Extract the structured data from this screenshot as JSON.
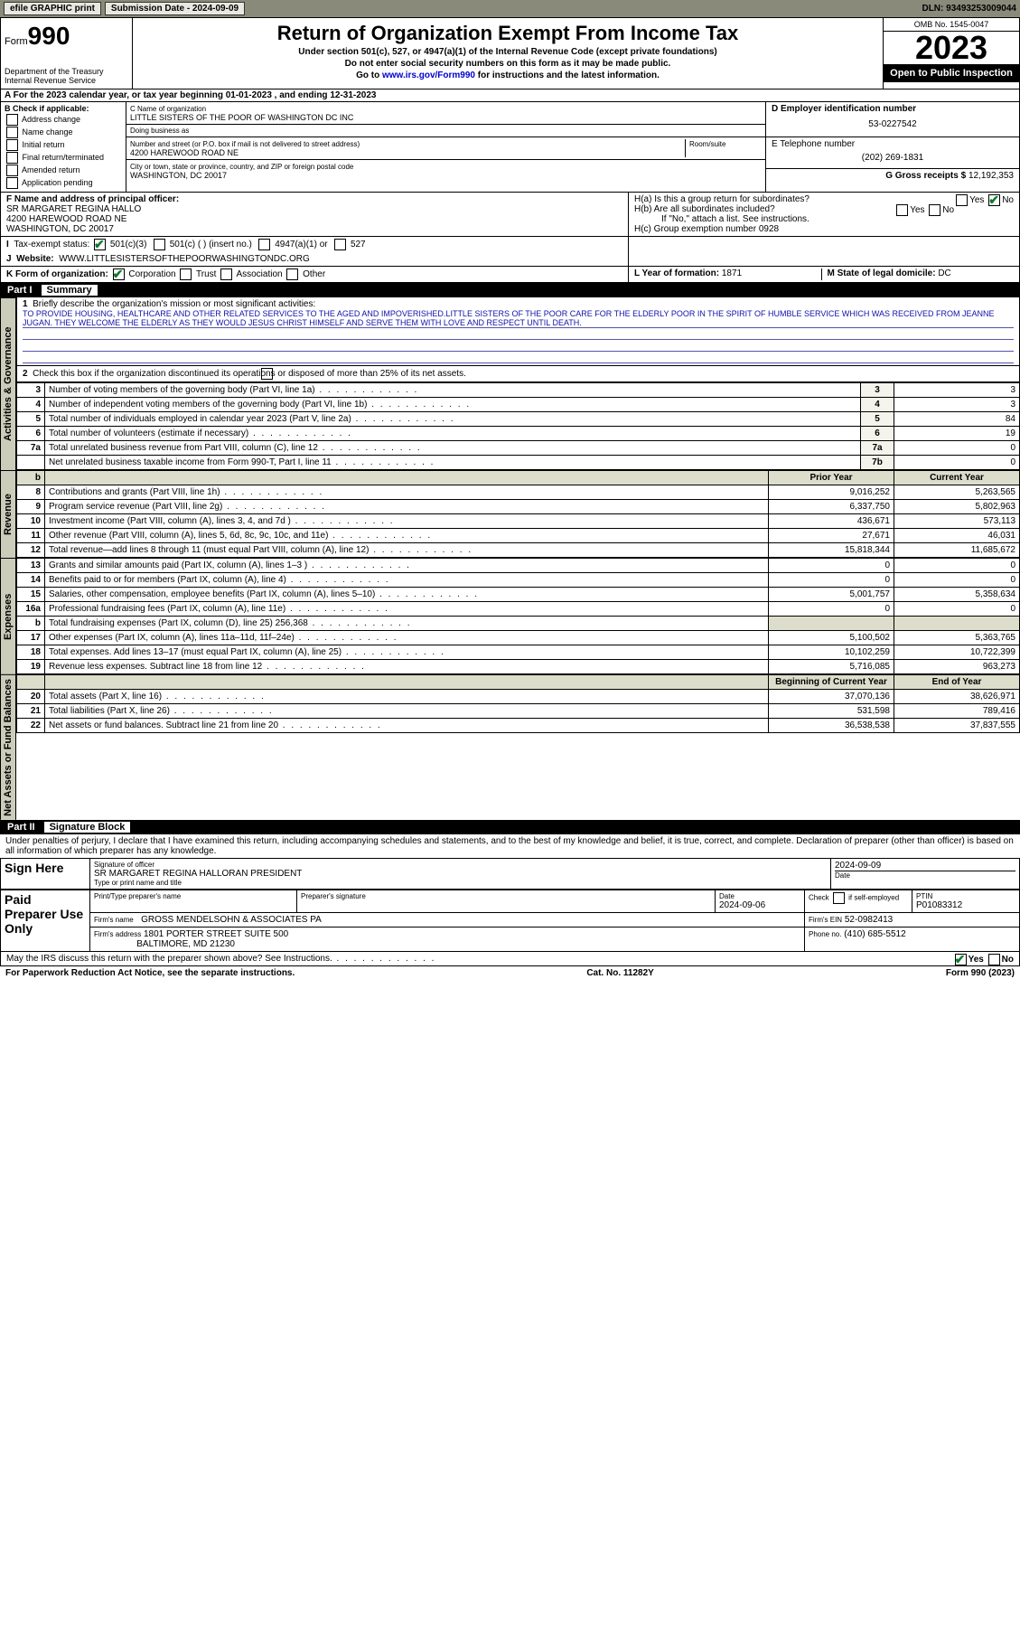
{
  "header": {
    "efile": "efile GRAPHIC print",
    "sub_label": "Submission Date - 2024-09-09",
    "dln": "DLN: 93493253009044"
  },
  "top": {
    "form_prefix": "Form",
    "form_no": "990",
    "dept": "Department of the Treasury",
    "irs": "Internal Revenue Service",
    "title": "Return of Organization Exempt From Income Tax",
    "sub1": "Under section 501(c), 527, or 4947(a)(1) of the Internal Revenue Code (except private foundations)",
    "sub2": "Do not enter social security numbers on this form as it may be made public.",
    "sub3_pre": "Go to ",
    "sub3_link": "www.irs.gov/Form990",
    "sub3_post": " for instructions and the latest information.",
    "omb": "OMB No. 1545-0047",
    "year": "2023",
    "inspection": "Open to Public Inspection"
  },
  "A": "A For the 2023 calendar year, or tax year beginning 01-01-2023    , and ending 12-31-2023",
  "B": {
    "label": "B Check if applicable:",
    "opts": [
      "Address change",
      "Name change",
      "Initial return",
      "Final return/terminated",
      "Amended return",
      "Application pending"
    ]
  },
  "C": {
    "name_lbl": "C Name of organization",
    "name": "LITTLE SISTERS OF THE POOR OF WASHINGTON DC INC",
    "dba_lbl": "Doing business as",
    "addr_lbl": "Number and street (or P.O. box if mail is not delivered to street address)",
    "room_lbl": "Room/suite",
    "addr": "4200 HAREWOOD ROAD NE",
    "city_lbl": "City or town, state or province, country, and ZIP or foreign postal code",
    "city": "WASHINGTON, DC  20017"
  },
  "D": {
    "lbl": "D Employer identification number",
    "val": "53-0227542"
  },
  "E": {
    "lbl": "E Telephone number",
    "val": "(202) 269-1831"
  },
  "G": {
    "lbl": "G Gross receipts $",
    "val": "12,192,353"
  },
  "F": {
    "lbl": "F Name and address of principal officer:",
    "name": "SR MARGARET REGINA HALLO",
    "addr": "4200 HAREWOOD ROAD NE",
    "city": "WASHINGTON, DC  20017"
  },
  "H": {
    "ha": "H(a)  Is this a group return for subordinates?",
    "hb": "H(b)  Are all subordinates included?",
    "hb_note": "If \"No,\" attach a list. See instructions.",
    "hc": "H(c)  Group exemption number ",
    "hc_val": "0928",
    "yes": "Yes",
    "no": "No"
  },
  "I": {
    "lbl": "Tax-exempt status:",
    "o1": "501(c)(3)",
    "o2": "501(c) (  ) (insert no.)",
    "o3": "4947(a)(1) or",
    "o4": "527"
  },
  "J": {
    "lbl": "Website:",
    "val": "WWW.LITTLESISTERSOFTHEPOORWASHINGTONDC.ORG"
  },
  "K": {
    "lbl": "K Form of organization:",
    "o1": "Corporation",
    "o2": "Trust",
    "o3": "Association",
    "o4": "Other"
  },
  "L": {
    "lbl": "L Year of formation:",
    "val": "1871"
  },
  "M": {
    "lbl": "M State of legal domicile:",
    "val": "DC"
  },
  "part1": {
    "no": "Part I",
    "title": "Summary",
    "q1": "Briefly describe the organization's mission or most significant activities:",
    "mission": "TO PROVIDE HOUSING, HEALTHCARE AND OTHER RELATED SERVICES TO THE AGED AND IMPOVERISHED.LITTLE SISTERS OF THE POOR CARE FOR THE ELDERLY POOR IN THE SPIRIT OF HUMBLE SERVICE WHICH WAS RECEIVED FROM JEANNE JUGAN. THEY WELCOME THE ELDERLY AS THEY WOULD JESUS CHRIST HIMSELF AND SERVE THEM WITH LOVE AND RESPECT UNTIL DEATH.",
    "q2": "Check this box         if the organization discontinued its operations or disposed of more than 25% of its net assets.",
    "vtab_gov": "Activities & Governance",
    "vtab_rev": "Revenue",
    "vtab_exp": "Expenses",
    "vtab_net": "Net Assets or Fund Balances",
    "hdr_prior": "Prior Year",
    "hdr_curr": "Current Year",
    "hdr_beg": "Beginning of Current Year",
    "hdr_end": "End of Year",
    "rows_gov": [
      {
        "n": "3",
        "t": "Number of voting members of the governing body (Part VI, line 1a)",
        "b": "3",
        "v": "3"
      },
      {
        "n": "4",
        "t": "Number of independent voting members of the governing body (Part VI, line 1b)",
        "b": "4",
        "v": "3"
      },
      {
        "n": "5",
        "t": "Total number of individuals employed in calendar year 2023 (Part V, line 2a)",
        "b": "5",
        "v": "84"
      },
      {
        "n": "6",
        "t": "Total number of volunteers (estimate if necessary)",
        "b": "6",
        "v": "19"
      },
      {
        "n": "7a",
        "t": "Total unrelated business revenue from Part VIII, column (C), line 12",
        "b": "7a",
        "v": "0"
      },
      {
        "n": "",
        "t": "Net unrelated business taxable income from Form 990-T, Part I, line 11",
        "b": "7b",
        "v": "0"
      }
    ],
    "rows_rev": [
      {
        "n": "8",
        "t": "Contributions and grants (Part VIII, line 1h)",
        "p": "9,016,252",
        "c": "5,263,565"
      },
      {
        "n": "9",
        "t": "Program service revenue (Part VIII, line 2g)",
        "p": "6,337,750",
        "c": "5,802,963"
      },
      {
        "n": "10",
        "t": "Investment income (Part VIII, column (A), lines 3, 4, and 7d )",
        "p": "436,671",
        "c": "573,113"
      },
      {
        "n": "11",
        "t": "Other revenue (Part VIII, column (A), lines 5, 6d, 8c, 9c, 10c, and 11e)",
        "p": "27,671",
        "c": "46,031"
      },
      {
        "n": "12",
        "t": "Total revenue—add lines 8 through 11 (must equal Part VIII, column (A), line 12)",
        "p": "15,818,344",
        "c": "11,685,672"
      }
    ],
    "rows_exp": [
      {
        "n": "13",
        "t": "Grants and similar amounts paid (Part IX, column (A), lines 1–3 )",
        "p": "0",
        "c": "0"
      },
      {
        "n": "14",
        "t": "Benefits paid to or for members (Part IX, column (A), line 4)",
        "p": "0",
        "c": "0"
      },
      {
        "n": "15",
        "t": "Salaries, other compensation, employee benefits (Part IX, column (A), lines 5–10)",
        "p": "5,001,757",
        "c": "5,358,634"
      },
      {
        "n": "16a",
        "t": "Professional fundraising fees (Part IX, column (A), line 11e)",
        "p": "0",
        "c": "0"
      },
      {
        "n": "b",
        "t": "Total fundraising expenses (Part IX, column (D), line 25) 256,368",
        "p": "",
        "c": "",
        "shade": true
      },
      {
        "n": "17",
        "t": "Other expenses (Part IX, column (A), lines 11a–11d, 11f–24e)",
        "p": "5,100,502",
        "c": "5,363,765"
      },
      {
        "n": "18",
        "t": "Total expenses. Add lines 13–17 (must equal Part IX, column (A), line 25)",
        "p": "10,102,259",
        "c": "10,722,399"
      },
      {
        "n": "19",
        "t": "Revenue less expenses. Subtract line 18 from line 12",
        "p": "5,716,085",
        "c": "963,273"
      }
    ],
    "rows_net": [
      {
        "n": "20",
        "t": "Total assets (Part X, line 16)",
        "p": "37,070,136",
        "c": "38,626,971"
      },
      {
        "n": "21",
        "t": "Total liabilities (Part X, line 26)",
        "p": "531,598",
        "c": "789,416"
      },
      {
        "n": "22",
        "t": "Net assets or fund balances. Subtract line 21 from line 20",
        "p": "36,538,538",
        "c": "37,837,555"
      }
    ]
  },
  "part2": {
    "no": "Part II",
    "title": "Signature Block",
    "decl": "Under penalties of perjury, I declare that I have examined this return, including accompanying schedules and statements, and to the best of my knowledge and belief, it is true, correct, and complete. Declaration of preparer (other than officer) is based on all information of which preparer has any knowledge.",
    "sign_here": "Sign Here",
    "sig_off": "Signature of officer",
    "sig_name": "SR MARGARET REGINA HALLORAN  PRESIDENT",
    "sig_type": "Type or print name and title",
    "date_lbl": "Date",
    "date_val": "2024-09-09",
    "paid": "Paid Preparer Use Only",
    "prep_name_lbl": "Print/Type preparer's name",
    "prep_sig_lbl": "Preparer's signature",
    "prep_date_lbl": "Date",
    "prep_date": "2024-09-06",
    "self_emp": "Check         if self-employed",
    "ptin_lbl": "PTIN",
    "ptin": "P01083312",
    "firm_name_lbl": "Firm's name",
    "firm_name": "GROSS MENDELSOHN & ASSOCIATES PA",
    "firm_ein_lbl": "Firm's EIN",
    "firm_ein": "52-0982413",
    "firm_addr_lbl": "Firm's address",
    "firm_addr1": "1801 PORTER STREET SUITE 500",
    "firm_addr2": "BALTIMORE, MD  21230",
    "phone_lbl": "Phone no.",
    "phone": "(410) 685-5512",
    "discuss": "May the IRS discuss this return with the preparer shown above? See Instructions."
  },
  "footer": {
    "left": "For Paperwork Reduction Act Notice, see the separate instructions.",
    "mid": "Cat. No. 11282Y",
    "right": "Form 990 (2023)"
  }
}
